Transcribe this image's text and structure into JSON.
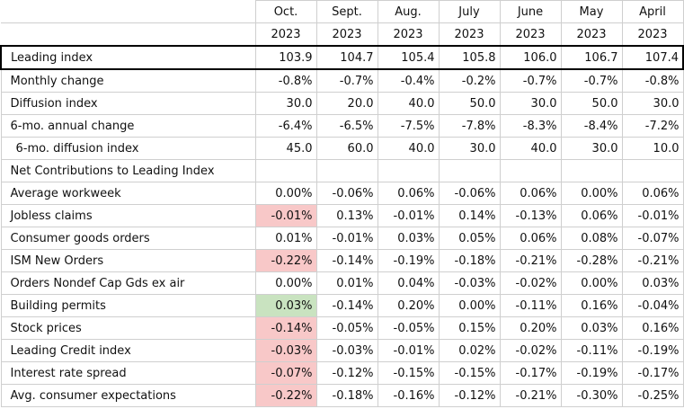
{
  "header": {
    "months": [
      "Oct.",
      "Sept.",
      "Aug.",
      "July",
      "June",
      "May",
      "April"
    ],
    "years": [
      "2023",
      "2023",
      "2023",
      "2023",
      "2023",
      "2023",
      "2023"
    ]
  },
  "rows": [
    {
      "label": "Leading index",
      "values": [
        "103.9",
        "104.7",
        "105.4",
        "105.8",
        "106.0",
        "106.7",
        "107.4"
      ],
      "boxed": true
    },
    {
      "label": "Monthly change",
      "values": [
        "-0.8%",
        "-0.7%",
        "-0.4%",
        "-0.2%",
        "-0.7%",
        "-0.7%",
        "-0.8%"
      ]
    },
    {
      "label": "Diffusion index",
      "values": [
        "30.0",
        "20.0",
        "40.0",
        "50.0",
        "30.0",
        "50.0",
        "30.0"
      ]
    },
    {
      "label": "6-mo. annual change",
      "values": [
        "-6.4%",
        "-6.5%",
        "-7.5%",
        "-7.8%",
        "-8.3%",
        "-8.4%",
        "-7.2%"
      ]
    },
    {
      "label": "6-mo. diffusion index",
      "values": [
        "45.0",
        "60.0",
        "40.0",
        "30.0",
        "40.0",
        "30.0",
        "10.0"
      ],
      "indent": true
    },
    {
      "label": "Net Contributions to Leading Index"
    },
    {
      "label": "Average workweek",
      "values": [
        "0.00%",
        "-0.06%",
        "0.06%",
        "-0.06%",
        "0.06%",
        "0.00%",
        "0.06%"
      ]
    },
    {
      "label": "Jobless claims",
      "values": [
        "-0.01%",
        "0.13%",
        "-0.01%",
        "0.14%",
        "-0.13%",
        "0.06%",
        "-0.01%"
      ],
      "highlight": "#f8c8c8"
    },
    {
      "label": "Consumer goods orders",
      "values": [
        "0.01%",
        "-0.01%",
        "0.03%",
        "0.05%",
        "0.06%",
        "0.08%",
        "-0.07%"
      ]
    },
    {
      "label": "ISM New Orders",
      "values": [
        "-0.22%",
        "-0.14%",
        "-0.19%",
        "-0.18%",
        "-0.21%",
        "-0.28%",
        "-0.21%"
      ],
      "highlight": "#f8c8c8"
    },
    {
      "label": "Orders Nondef Cap Gds ex air",
      "values": [
        "0.00%",
        "0.01%",
        "0.04%",
        "-0.03%",
        "-0.02%",
        "0.00%",
        "0.03%"
      ]
    },
    {
      "label": "Building permits",
      "values": [
        "0.03%",
        "-0.14%",
        "0.20%",
        "0.00%",
        "-0.11%",
        "0.16%",
        "-0.04%"
      ],
      "highlight": "#c9e3c0"
    },
    {
      "label": "Stock prices",
      "values": [
        "-0.14%",
        "-0.05%",
        "-0.05%",
        "0.15%",
        "0.20%",
        "0.03%",
        "0.16%"
      ],
      "highlight": "#f8c8c8"
    },
    {
      "label": "Leading Credit index",
      "values": [
        "-0.03%",
        "-0.03%",
        "-0.01%",
        "0.02%",
        "-0.02%",
        "-0.11%",
        "-0.19%"
      ],
      "highlight": "#f8c8c8"
    },
    {
      "label": "Interest rate spread",
      "values": [
        "-0.07%",
        "-0.12%",
        "-0.15%",
        "-0.15%",
        "-0.17%",
        "-0.19%",
        "-0.17%"
      ],
      "highlight": "#f8c8c8"
    },
    {
      "label": "Avg. consumer expectations",
      "values": [
        "-0.22%",
        "-0.18%",
        "-0.16%",
        "-0.12%",
        "-0.21%",
        "-0.30%",
        "-0.25%"
      ],
      "highlight": "#f8c8c8"
    }
  ]
}
